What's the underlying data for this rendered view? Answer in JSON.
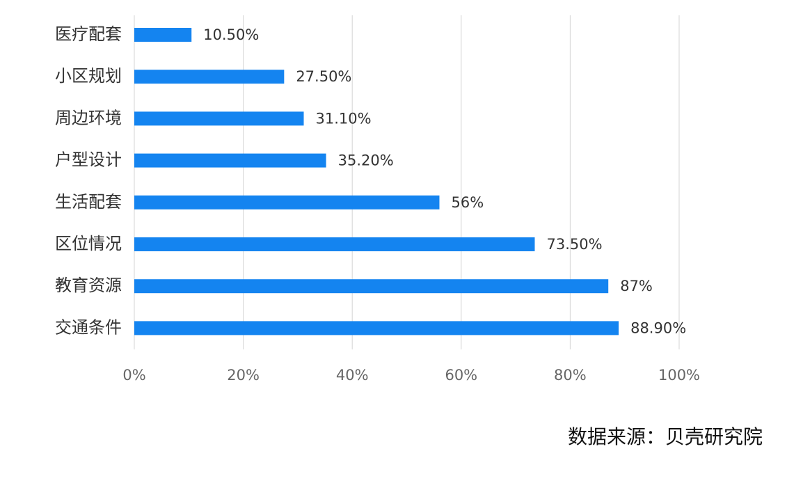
{
  "chart_data": {
    "type": "bar",
    "orientation": "horizontal",
    "categories": [
      "医疗配套",
      "小区规划",
      "周边环境",
      "户型设计",
      "生活配套",
      "区位情况",
      "教育资源",
      "交通条件"
    ],
    "values": [
      10.5,
      27.5,
      31.1,
      35.2,
      56,
      73.5,
      87,
      88.9
    ],
    "value_labels": [
      "10.50%",
      "27.50%",
      "31.10%",
      "35.20%",
      "56%",
      "73.50%",
      "87%",
      "88.90%"
    ],
    "x_ticks": [
      "0%",
      "20%",
      "40%",
      "60%",
      "80%",
      "100%"
    ],
    "xlim": [
      0,
      100
    ],
    "title": "",
    "xlabel": "",
    "ylabel": "",
    "grid": true,
    "legend": "none",
    "bar_color": "#1484f0"
  },
  "source_note": "数据来源：贝壳研究院"
}
